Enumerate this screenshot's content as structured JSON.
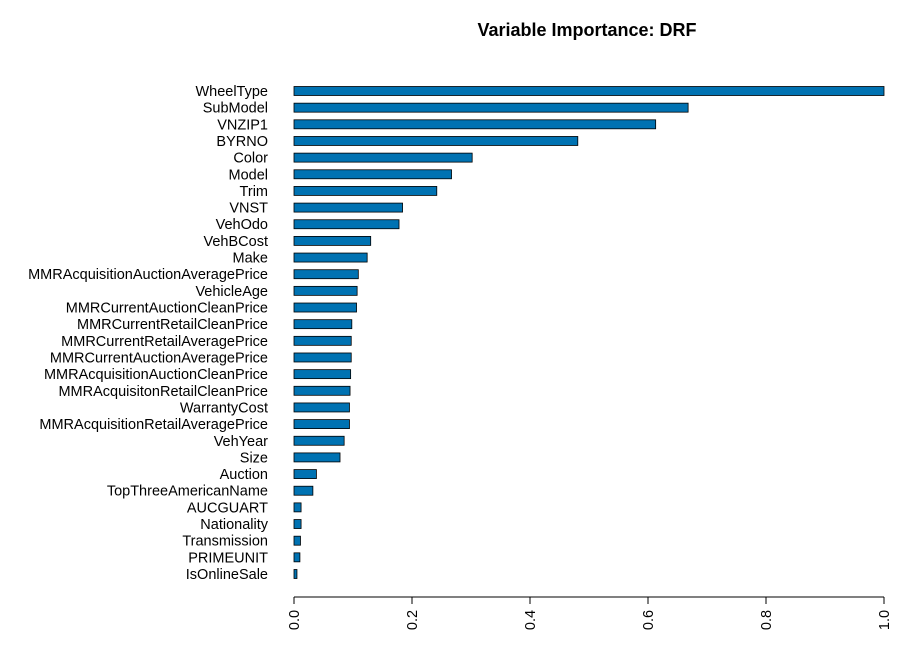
{
  "chart_data": {
    "type": "bar",
    "orientation": "horizontal",
    "title": "Variable Importance: DRF",
    "xlabel": "",
    "ylabel": "",
    "xlim": [
      0,
      1.0
    ],
    "x_ticks": [
      "0.0",
      "0.2",
      "0.4",
      "0.6",
      "0.8",
      "1.0"
    ],
    "bar_color": "#0072B2",
    "grid": false,
    "categories": [
      "WheelType",
      "SubModel",
      "VNZIP1",
      "BYRNO",
      "Color",
      "Model",
      "Trim",
      "VNST",
      "VehOdo",
      "VehBCost",
      "Make",
      "MMRAcquisitionAuctionAveragePrice",
      "VehicleAge",
      "MMRCurrentAuctionCleanPrice",
      "MMRCurrentRetailCleanPrice",
      "MMRCurrentRetailAveragePrice",
      "MMRCurrentAuctionAveragePrice",
      "MMRAcquisitionAuctionCleanPrice",
      "MMRAcquisitonRetailCleanPrice",
      "WarrantyCost",
      "MMRAcquisitionRetailAveragePrice",
      "VehYear",
      "Size",
      "Auction",
      "TopThreeAmericanName",
      "AUCGUART",
      "Nationality",
      "Transmission",
      "PRIMEUNIT",
      "IsOnlineSale"
    ],
    "values": [
      1.0,
      0.668,
      0.613,
      0.481,
      0.302,
      0.267,
      0.242,
      0.184,
      0.178,
      0.13,
      0.124,
      0.109,
      0.107,
      0.106,
      0.098,
      0.097,
      0.097,
      0.096,
      0.095,
      0.094,
      0.094,
      0.085,
      0.078,
      0.038,
      0.032,
      0.012,
      0.012,
      0.011,
      0.01,
      0.005
    ]
  }
}
